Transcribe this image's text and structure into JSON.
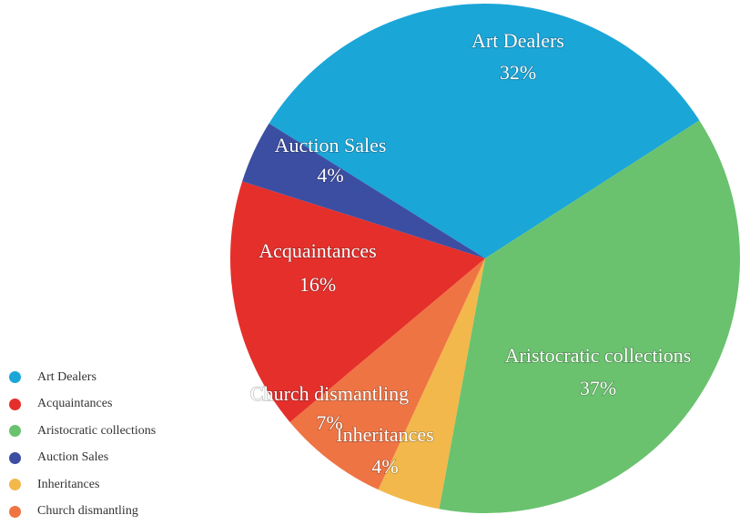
{
  "chart_data": {
    "type": "pie",
    "slices": [
      {
        "label": "Art Dealers",
        "value": 32,
        "value_label": "32%",
        "color": "#1ba6d8"
      },
      {
        "label": "Aristocratic collections",
        "value": 37,
        "value_label": "37%",
        "color": "#6ac26e"
      },
      {
        "label": "Inheritances",
        "value": 4,
        "value_label": "4%",
        "color": "#f2b84b"
      },
      {
        "label": "Church dismantling",
        "value": 7,
        "value_label": "7%",
        "color": "#ef7444"
      },
      {
        "label": "Acquaintances",
        "value": 16,
        "value_label": "16%",
        "color": "#e52f2b"
      },
      {
        "label": "Auction Sales",
        "value": 4,
        "value_label": "4%",
        "color": "#3c4ea2"
      }
    ],
    "legend": {
      "placement": "bottom-left",
      "items": [
        {
          "label": "Art Dealers",
          "color": "#1ba6d8"
        },
        {
          "label": "Acquaintances",
          "color": "#e52f2b"
        },
        {
          "label": "Aristocratic collections",
          "color": "#6ac26e"
        },
        {
          "label": "Auction Sales",
          "color": "#3c4ea2"
        },
        {
          "label": "Inheritances",
          "color": "#f2b84b"
        },
        {
          "label": "Church dismantling",
          "color": "#ef7444"
        }
      ]
    }
  }
}
